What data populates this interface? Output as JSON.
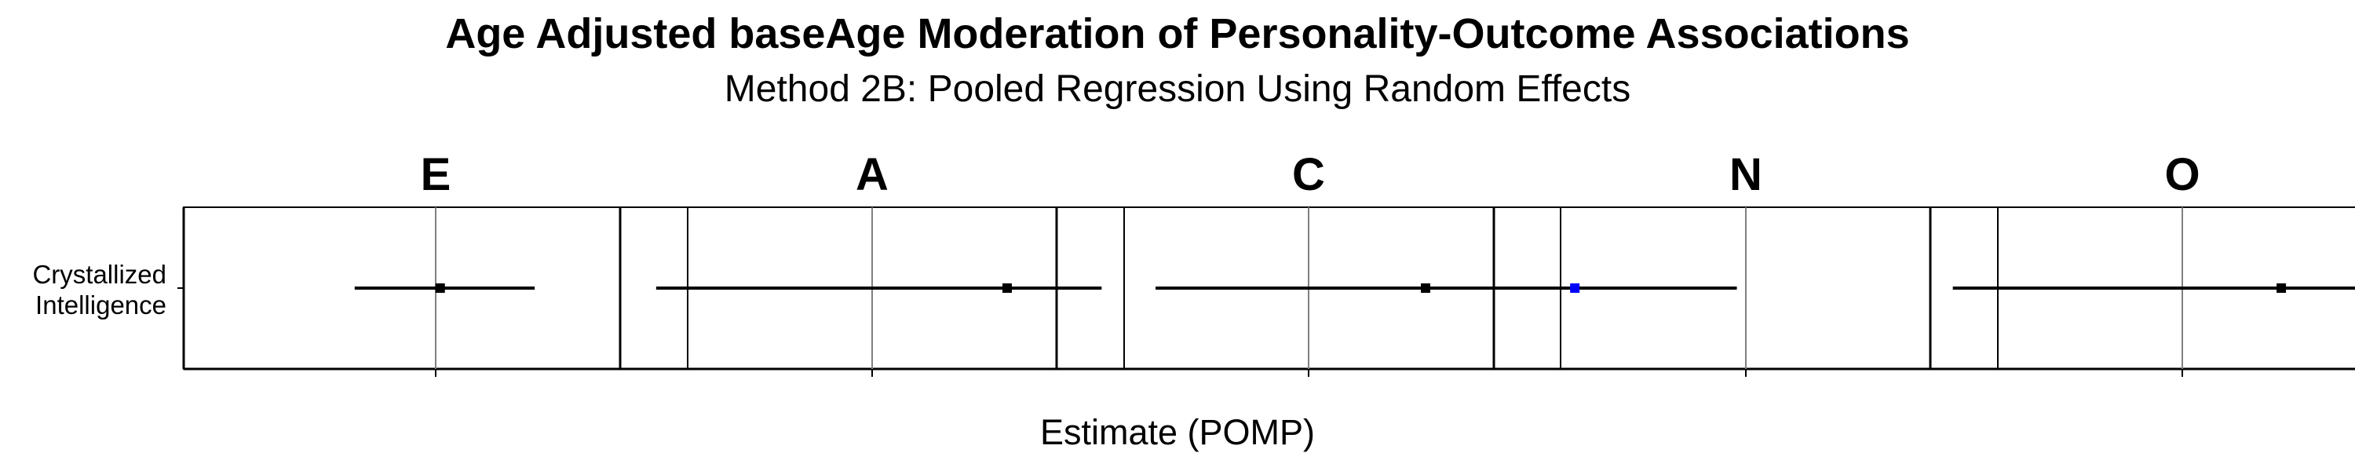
{
  "chart_data": {
    "type": "forest",
    "title": "Age Adjusted baseAge Moderation of Personality-Outcome Associations",
    "subtitle": "Method 2B: Pooled Regression Using Random Effects",
    "xlabel": "Estimate (POMP)",
    "ylabel_category": "Crystallized\nIntelligence",
    "grid": false,
    "facets": [
      {
        "label": "E",
        "estimate": 0.005,
        "ci": [
          -0.09,
          0.11
        ],
        "xlim": [
          -0.28,
          0.28
        ],
        "point_color": "#000000"
      },
      {
        "label": "A",
        "estimate": 0.15,
        "ci": [
          -0.24,
          0.255
        ],
        "xlim": [
          -0.28,
          0.28
        ],
        "point_color": "#000000"
      },
      {
        "label": "C",
        "estimate": 0.13,
        "ci": [
          -0.17,
          0.255
        ],
        "xlim": [
          -0.28,
          0.28
        ],
        "point_color": "#000000"
      },
      {
        "label": "N",
        "estimate": -0.19,
        "ci": [
          -0.255,
          -0.01
        ],
        "xlim": [
          -0.28,
          0.28
        ],
        "point_color": "#0000ff"
      },
      {
        "label": "O",
        "estimate": 0.11,
        "ci": [
          -0.255,
          0.255
        ],
        "xlim": [
          -0.28,
          0.28
        ],
        "point_color": "#000000"
      }
    ]
  }
}
